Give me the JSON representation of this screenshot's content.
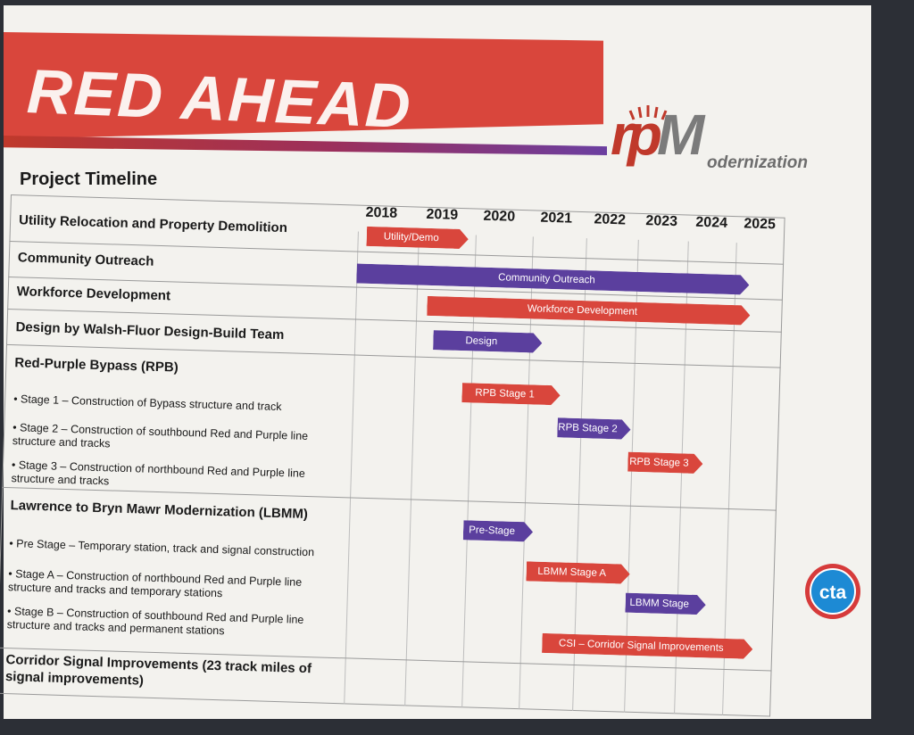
{
  "banner": {
    "title": "RED AHEAD"
  },
  "logo": {
    "mark": "rp",
    "mark_m": "M",
    "word": "odernization"
  },
  "timeline": {
    "title": "Project Timeline",
    "years": [
      "2018",
      "2019",
      "2020",
      "2021",
      "2022",
      "2023",
      "2024",
      "2025"
    ],
    "rows": [
      {
        "label": "Utility Relocation and Property Demolition"
      },
      {
        "label": "Community Outreach"
      },
      {
        "label": "Workforce Development"
      },
      {
        "label": "Design by Walsh-Fluor Design-Build Team"
      },
      {
        "label": "Red-Purple Bypass (RPB)"
      },
      {
        "label": "Lawrence to Bryn Mawr Modernization (LBMM)"
      },
      {
        "label": "Corridor Signal Improvements (23 track miles of signal improvements)"
      }
    ],
    "sub_items": [
      "• Stage 1 – Construction of Bypass structure and track",
      "• Stage 2 – Construction of southbound Red and Purple line structure and tracks",
      "• Stage 3 – Construction of northbound Red and Purple line structure and tracks",
      "• Pre Stage – Temporary station, track and signal construction",
      "• Stage A – Construction of northbound Red and Purple line structure and tracks and temporary stations",
      "• Stage B – Construction of southbound Red and Purple line structure and tracks and permanent stations"
    ],
    "bars": [
      {
        "label": "Utility/Demo",
        "color": "#d9463c"
      },
      {
        "label": "Community Outreach",
        "color": "#5b3f9e"
      },
      {
        "label": "Workforce Development",
        "color": "#d9463c"
      },
      {
        "label": "Design",
        "color": "#5b3f9e"
      },
      {
        "label": "RPB Stage 1",
        "color": "#d9463c"
      },
      {
        "label": "RPB Stage 2",
        "color": "#5b3f9e"
      },
      {
        "label": "RPB Stage 3",
        "color": "#d9463c"
      },
      {
        "label": "Pre-Stage",
        "color": "#5b3f9e"
      },
      {
        "label": "LBMM Stage A",
        "color": "#d9463c"
      },
      {
        "label": "LBMM Stage B",
        "color": "#5b3f9e"
      },
      {
        "label": "CSI – Corridor Signal Improvements",
        "color": "#d9463c"
      }
    ]
  },
  "cta_logo": {
    "text": "cta"
  },
  "colors": {
    "red": "#d9463c",
    "purple": "#5b3f9e",
    "wall": "#2c2f36",
    "paper": "#f3f2ee"
  }
}
